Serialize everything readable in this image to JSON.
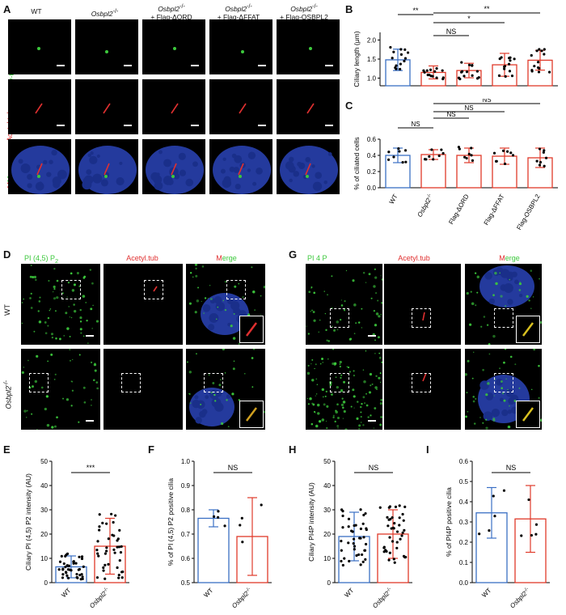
{
  "panel_letters": {
    "A": "A",
    "B": "B",
    "C": "C",
    "D": "D",
    "E": "E",
    "F": "F",
    "G": "G",
    "H": "H",
    "I": "I"
  },
  "panelA": {
    "columns": [
      "WT",
      "Osbpl2",
      "Osbpl2",
      "Osbpl2",
      "Osbpl2"
    ],
    "col_sup": [
      "",
      "-/-",
      "-/-",
      "-/-",
      "-/-"
    ],
    "col_sub": [
      "",
      "",
      "+ Flag-ΔORD",
      "+ Flag-ΔFFAT",
      "+ Flag-OSBPL2"
    ],
    "rows": [
      "γ-tubulin",
      "Acetyl.tub.",
      "Merge"
    ],
    "row_colors": {
      "gamma": "#3cc83c",
      "acetyl": "#e03030"
    }
  },
  "panelD": {
    "headers": [
      "PI (4,5) P",
      "Acetyl.tub",
      "Merge"
    ],
    "header_sub": "2",
    "rows": [
      "WT",
      "Osbpl2"
    ],
    "rows_sup": [
      "",
      "-/-"
    ]
  },
  "panelG": {
    "headers": [
      "PI 4 P",
      "Acetyl.tub",
      "Merge"
    ]
  },
  "colors": {
    "wt": "#3a6fc4",
    "ko": "#e03a2a",
    "green": "#3cc83c",
    "red": "#e03030",
    "nucleus": "#2a44b8"
  },
  "chart_data": [
    {
      "id": "B",
      "type": "bar",
      "categories": [
        "WT",
        "Osbpl2-/-",
        "Flag-ΔORD",
        "Flag-ΔFFAT",
        "Flag-OSBPL2"
      ],
      "values": [
        1.48,
        1.15,
        1.2,
        1.35,
        1.47
      ],
      "errors": [
        0.28,
        0.17,
        0.19,
        0.3,
        0.26
      ],
      "ylabel": "Ciliary length (μm)",
      "ylim": [
        0.8,
        2.2
      ],
      "yticks": [
        1.0,
        1.5,
        2.0
      ],
      "significance": [
        "**",
        "*",
        "**",
        "NS"
      ]
    },
    {
      "id": "C",
      "type": "bar",
      "categories": [
        "WT",
        "Osbpl2-/-",
        "Flag-ΔORD",
        "Flag-ΔFFAT",
        "Flag-OSBPL2"
      ],
      "values": [
        0.4,
        0.41,
        0.4,
        0.39,
        0.37
      ],
      "errors": [
        0.09,
        0.06,
        0.09,
        0.1,
        0.12
      ],
      "ylabel": "% of ciliated cells",
      "ylim": [
        0,
        0.6
      ],
      "yticks": [
        0.0,
        0.2,
        0.4,
        0.6
      ],
      "significance": [
        "NS",
        "NS",
        "NS",
        "NS"
      ]
    },
    {
      "id": "E",
      "type": "bar",
      "categories": [
        "WT",
        "Osbpl2-/-"
      ],
      "values": [
        6.5,
        15
      ],
      "errors": [
        4.5,
        11.5
      ],
      "ylabel": "Ciliary PI (4,5) P2 intensity (AU)",
      "ylim": [
        0,
        50
      ],
      "yticks": [
        0,
        10,
        20,
        30,
        40,
        50
      ],
      "significance": [
        "***"
      ]
    },
    {
      "id": "F",
      "type": "bar",
      "categories": [
        "WT",
        "Osbpl2-/-"
      ],
      "values": [
        0.765,
        0.69
      ],
      "errors": [
        0.035,
        0.16
      ],
      "ylabel": "% of PI (4,5) P2 positive cilia",
      "ylim": [
        0.5,
        1.0
      ],
      "yticks": [
        0.5,
        0.6,
        0.7,
        0.8,
        0.9,
        1.0
      ],
      "significance": [
        "NS"
      ]
    },
    {
      "id": "H",
      "type": "bar",
      "categories": [
        "WT",
        "Osbpl2-/-"
      ],
      "values": [
        19,
        20
      ],
      "errors": [
        10,
        10
      ],
      "ylabel": "Ciliary PI4P intensity (AU)",
      "ylim": [
        0,
        50
      ],
      "yticks": [
        0,
        10,
        20,
        30,
        40,
        50
      ],
      "significance": [
        "NS"
      ]
    },
    {
      "id": "I",
      "type": "bar",
      "categories": [
        "WT",
        "Osbpl2-/-"
      ],
      "values": [
        0.345,
        0.315
      ],
      "errors": [
        0.125,
        0.165
      ],
      "ylabel": "% of PI4P positive cilia",
      "ylim": [
        0,
        0.6
      ],
      "yticks": [
        0.0,
        0.1,
        0.2,
        0.3,
        0.4,
        0.5,
        0.6
      ],
      "significance": [
        "NS"
      ]
    }
  ]
}
